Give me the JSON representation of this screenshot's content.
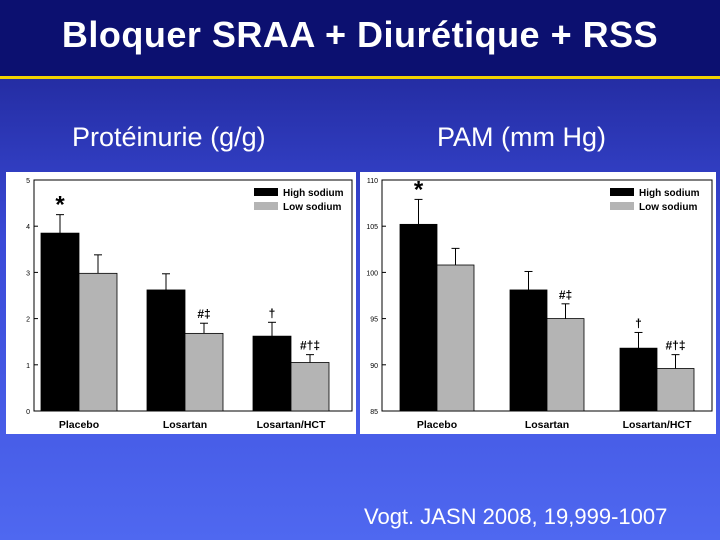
{
  "slide": {
    "title": "Bloquer SRAA + Diurétique + RSS",
    "citation": "Vogt. JASN 2008, 19,999-1007",
    "colors": {
      "background": "#3a4ad8",
      "title_band": "#0c1070",
      "accent_line": "#f2d200"
    }
  },
  "chart_data": [
    {
      "type": "bar",
      "title": "Protéinurie (g/g)",
      "categories": [
        "Placebo",
        "Losartan",
        "Losartan/HCT"
      ],
      "series": [
        {
          "name": "High sodium",
          "color": "#000000",
          "values": [
            3.85,
            2.62,
            1.62
          ],
          "errors": [
            0.4,
            0.35,
            0.3
          ],
          "annotations": [
            "*",
            "",
            "†"
          ]
        },
        {
          "name": "Low sodium",
          "color": "#b4b4b4",
          "values": [
            2.98,
            1.68,
            1.05
          ],
          "errors": [
            0.4,
            0.22,
            0.17
          ],
          "annotations": [
            "",
            "#‡",
            "#†‡"
          ]
        }
      ],
      "ylim": [
        0,
        5
      ],
      "yticks": [
        "0",
        "1",
        "2",
        "3",
        "4",
        "5"
      ],
      "legend": "top-right"
    },
    {
      "type": "bar",
      "title": "PAM (mm Hg)",
      "categories": [
        "Placebo",
        "Losartan",
        "Losartan/HCT"
      ],
      "series": [
        {
          "name": "High sodium",
          "color": "#000000",
          "values": [
            105.2,
            98.1,
            91.8
          ],
          "errors": [
            2.7,
            2.0,
            1.7
          ],
          "annotations": [
            "*",
            "",
            "†"
          ]
        },
        {
          "name": "Low sodium",
          "color": "#b4b4b4",
          "values": [
            100.8,
            95.0,
            89.6
          ],
          "errors": [
            1.8,
            1.6,
            1.5
          ],
          "annotations": [
            "",
            "#‡",
            "#†‡"
          ]
        }
      ],
      "ylim": [
        85,
        110
      ],
      "yticks": [
        "85",
        "90",
        "95",
        "100",
        "105",
        "110"
      ],
      "legend": "top-right"
    }
  ]
}
